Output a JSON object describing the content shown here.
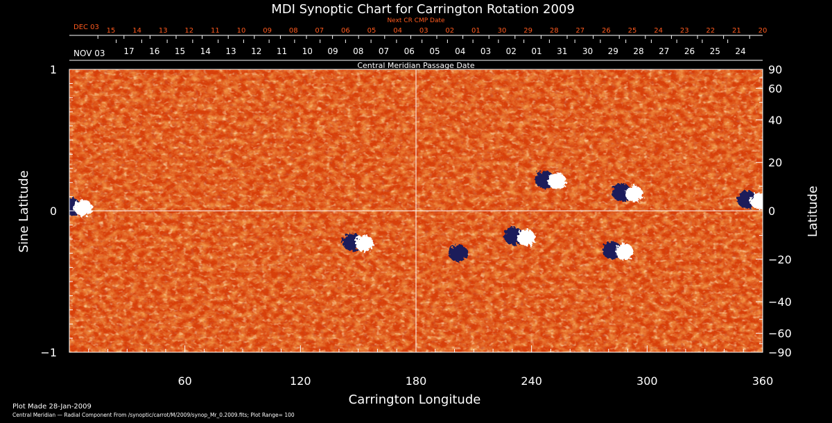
{
  "chart_data": {
    "type": "heatmap",
    "title": "MDI Synoptic Chart for Carrington Rotation 2009",
    "xlabel": "Carrington Longitude",
    "ylabel_left": "Sine Latitude",
    "ylabel_right": "Latitude",
    "xlim": [
      0,
      360
    ],
    "ylim": [
      -1,
      1
    ],
    "x_ticks": [
      60,
      120,
      180,
      240,
      300,
      360
    ],
    "y_ticks_left": [
      {
        "value": 1,
        "label": "1"
      },
      {
        "value": 0,
        "label": "0"
      },
      {
        "value": -1,
        "label": "−1"
      }
    ],
    "y_ticks_right": [
      {
        "deg": 90,
        "label": "90"
      },
      {
        "deg": 60,
        "label": "60"
      },
      {
        "deg": 40,
        "label": "40"
      },
      {
        "deg": 20,
        "label": "20"
      },
      {
        "deg": 0,
        "label": "0"
      },
      {
        "deg": -20,
        "label": "−20"
      },
      {
        "deg": -40,
        "label": "−40"
      },
      {
        "deg": -60,
        "label": "−60"
      },
      {
        "deg": -90,
        "label": "−90"
      }
    ],
    "top_axis_label": "Central Meridian Passage Date",
    "next_axis_label": "Next CR CMP Date",
    "cmp_dates_start": "NOV 03",
    "cmp_dates": [
      "17",
      "16",
      "15",
      "14",
      "13",
      "12",
      "11",
      "10",
      "09",
      "08",
      "07",
      "06",
      "05",
      "04",
      "03",
      "02",
      "01",
      "31",
      "30",
      "29",
      "28",
      "27",
      "26",
      "25",
      "24"
    ],
    "next_dates_start": "DEC 03",
    "next_dates": [
      "15",
      "14",
      "13",
      "12",
      "11",
      "10",
      "09",
      "08",
      "07",
      "06",
      "05",
      "04",
      "03",
      "02",
      "01",
      "30",
      "29",
      "28",
      "27",
      "26",
      "25",
      "24",
      "23",
      "22",
      "21",
      "20"
    ],
    "crosshair": {
      "longitude": 180,
      "sine_latitude": 0
    },
    "active_regions": [
      {
        "lon": 4,
        "sinlat": 0.03,
        "polarity": "mixed"
      },
      {
        "lon": 150,
        "sinlat": -0.22,
        "polarity": "mixed"
      },
      {
        "lon": 202,
        "sinlat": -0.3,
        "polarity": "negative"
      },
      {
        "lon": 234,
        "sinlat": -0.18,
        "polarity": "mixed"
      },
      {
        "lon": 250,
        "sinlat": 0.22,
        "polarity": "mixed"
      },
      {
        "lon": 285,
        "sinlat": -0.28,
        "polarity": "mixed"
      },
      {
        "lon": 290,
        "sinlat": 0.13,
        "polarity": "mixed"
      },
      {
        "lon": 355,
        "sinlat": 0.08,
        "polarity": "mixed"
      }
    ],
    "colors": {
      "background": "#000000",
      "field_base": "#e8500e",
      "positive": "#ffffff",
      "negative": "#1a1a5a",
      "date_text_next": "#ff5a1e",
      "axis_text": "#ffffff"
    }
  },
  "footer": {
    "plot_made": "Plot Made 28-Jan-2009",
    "caption": "Central Meridian — Radial Component From /synoptic/carrot/M/2009/synop_Mr_0.2009.fits; Plot Range=  100"
  }
}
